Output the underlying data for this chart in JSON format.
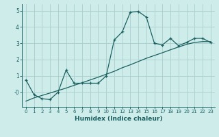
{
  "title": "",
  "xlabel": "Humidex (Indice chaleur)",
  "ylabel": "",
  "bg_color": "#ceecea",
  "grid_color": "#aacfcc",
  "line_color": "#1a6060",
  "x_data": [
    0,
    1,
    2,
    3,
    4,
    5,
    6,
    7,
    8,
    9,
    10,
    11,
    12,
    13,
    14,
    15,
    16,
    17,
    18,
    19,
    20,
    21,
    22,
    23
  ],
  "y1_data": [
    0.75,
    -0.15,
    -0.4,
    -0.45,
    0.0,
    1.35,
    0.55,
    0.55,
    0.55,
    0.55,
    1.0,
    3.2,
    3.7,
    4.9,
    4.95,
    4.6,
    3.0,
    2.9,
    3.3,
    2.85,
    3.05,
    3.3,
    3.3,
    3.05
  ],
  "y2_data": [
    -0.55,
    -0.35,
    -0.2,
    -0.05,
    0.1,
    0.25,
    0.42,
    0.58,
    0.75,
    0.92,
    1.1,
    1.28,
    1.5,
    1.68,
    1.88,
    2.08,
    2.25,
    2.42,
    2.6,
    2.77,
    2.93,
    3.05,
    3.1,
    3.1
  ],
  "xlim": [
    -0.5,
    23.5
  ],
  "ylim": [
    -0.9,
    5.4
  ],
  "yticks": [
    0,
    1,
    2,
    3,
    4,
    5
  ],
  "ytick_labels": [
    "-0",
    "1",
    "2",
    "3",
    "4",
    "5"
  ],
  "xticks": [
    0,
    1,
    2,
    3,
    4,
    5,
    6,
    7,
    8,
    9,
    10,
    11,
    12,
    13,
    14,
    15,
    16,
    17,
    18,
    19,
    20,
    21,
    22,
    23
  ]
}
